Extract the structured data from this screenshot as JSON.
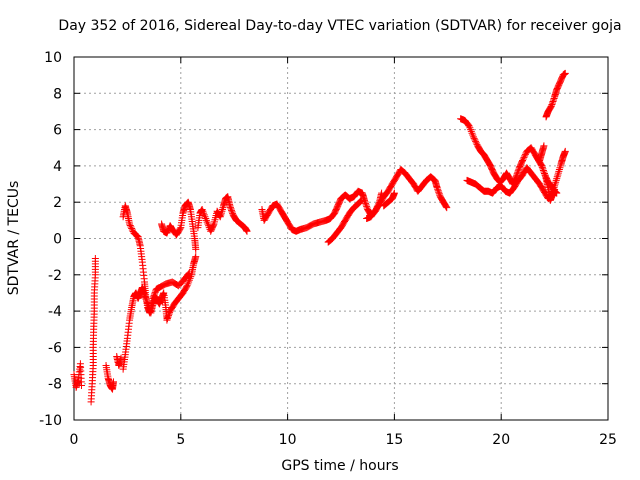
{
  "chart_data": {
    "type": "scatter",
    "title": "Day 352 of 2016, Sidereal Day-to-day VTEC variation (SDTVAR) for receiver goja",
    "xlabel": "GPS time / hours",
    "ylabel": "SDTVAR / TECUs",
    "xlim": [
      0,
      25
    ],
    "ylim": [
      -10,
      10
    ],
    "xticks": [
      "0",
      "5",
      "10",
      "15",
      "20",
      "25"
    ],
    "yticks": [
      "-10",
      "-8",
      "-6",
      "-4",
      "-2",
      "0",
      "2",
      "4",
      "6",
      "8",
      "10"
    ],
    "grid": true,
    "marker": "+",
    "color": "#ff0000",
    "series": [
      {
        "name": "SDTVAR",
        "segments": [
          [
            [
              0.0,
              -7.5
            ],
            [
              0.1,
              -8.2
            ],
            [
              0.2,
              -7.8
            ],
            [
              0.3,
              -6.9
            ],
            [
              0.35,
              -8.1
            ]
          ],
          [
            [
              0.8,
              -9.0
            ],
            [
              0.85,
              -8.0
            ],
            [
              0.9,
              -7.0
            ],
            [
              0.9,
              -6.0
            ],
            [
              0.92,
              -5.0
            ],
            [
              0.95,
              -4.0
            ],
            [
              0.95,
              -3.0
            ],
            [
              1.0,
              -2.0
            ],
            [
              1.0,
              -1.1
            ]
          ],
          [
            [
              1.5,
              -7.0
            ],
            [
              1.6,
              -7.7
            ],
            [
              1.7,
              -8.1
            ],
            [
              1.8,
              -8.3
            ],
            [
              1.85,
              -7.9
            ]
          ],
          [
            [
              2.0,
              -6.5
            ],
            [
              2.1,
              -7.0
            ],
            [
              2.2,
              -6.6
            ]
          ],
          [
            [
              2.3,
              -7.2
            ],
            [
              2.4,
              -6.4
            ],
            [
              2.5,
              -5.5
            ],
            [
              2.6,
              -4.5
            ],
            [
              2.7,
              -3.8
            ],
            [
              2.8,
              -3.2
            ],
            [
              2.9,
              -3.0
            ],
            [
              3.0,
              -3.3
            ],
            [
              3.1,
              -3.0
            ],
            [
              3.2,
              -2.7
            ],
            [
              3.3,
              -3.1
            ],
            [
              3.45,
              -3.6
            ],
            [
              3.6,
              -4.1
            ],
            [
              3.7,
              -3.6
            ],
            [
              3.8,
              -3.2
            ],
            [
              3.9,
              -3.4
            ],
            [
              4.0,
              -3.6
            ],
            [
              4.1,
              -3.3
            ],
            [
              4.2,
              -3.0
            ],
            [
              4.3,
              -3.8
            ],
            [
              4.35,
              -4.5
            ],
            [
              4.5,
              -4.0
            ],
            [
              4.7,
              -3.6
            ],
            [
              4.9,
              -3.3
            ],
            [
              5.1,
              -3.0
            ],
            [
              5.3,
              -2.6
            ],
            [
              5.5,
              -2.0
            ],
            [
              5.6,
              -1.4
            ],
            [
              5.7,
              -1.0
            ]
          ],
          [
            [
              2.3,
              1.2
            ],
            [
              2.4,
              1.8
            ],
            [
              2.5,
              1.4
            ],
            [
              2.6,
              0.8
            ],
            [
              2.8,
              0.3
            ],
            [
              3.0,
              0.1
            ],
            [
              3.1,
              -0.4
            ],
            [
              3.2,
              -1.3
            ],
            [
              3.3,
              -2.4
            ],
            [
              3.35,
              -3.1
            ],
            [
              3.45,
              -3.8
            ],
            [
              3.55,
              -4.1
            ],
            [
              3.7,
              -3.3
            ],
            [
              3.85,
              -2.8
            ],
            [
              4.0,
              -2.7
            ],
            [
              4.3,
              -2.5
            ],
            [
              4.6,
              -2.4
            ],
            [
              4.9,
              -2.6
            ],
            [
              5.2,
              -2.2
            ],
            [
              5.4,
              -1.9
            ]
          ],
          [
            [
              4.1,
              0.8
            ],
            [
              4.2,
              0.4
            ],
            [
              4.35,
              0.3
            ],
            [
              4.5,
              0.7
            ],
            [
              4.6,
              0.5
            ],
            [
              4.8,
              0.2
            ],
            [
              5.0,
              0.6
            ],
            [
              5.1,
              1.4
            ],
            [
              5.2,
              1.8
            ],
            [
              5.35,
              2.0
            ],
            [
              5.45,
              1.6
            ],
            [
              5.55,
              0.8
            ],
            [
              5.65,
              0.0
            ],
            [
              5.7,
              -0.6
            ]
          ],
          [
            [
              5.8,
              0.6
            ],
            [
              5.9,
              1.4
            ],
            [
              6.0,
              1.6
            ],
            [
              6.2,
              1.0
            ],
            [
              6.4,
              0.4
            ],
            [
              6.55,
              0.8
            ],
            [
              6.7,
              1.5
            ],
            [
              6.85,
              1.2
            ],
            [
              7.0,
              1.8
            ],
            [
              7.1,
              2.2
            ],
            [
              7.2,
              2.3
            ],
            [
              7.3,
              1.8
            ],
            [
              7.45,
              1.3
            ],
            [
              7.6,
              1.0
            ],
            [
              7.8,
              0.8
            ],
            [
              8.0,
              0.6
            ],
            [
              8.1,
              0.4
            ]
          ],
          [
            [
              8.8,
              1.6
            ],
            [
              8.9,
              1.0
            ],
            [
              9.1,
              1.4
            ],
            [
              9.3,
              1.8
            ],
            [
              9.5,
              1.9
            ],
            [
              9.7,
              1.5
            ],
            [
              9.85,
              1.2
            ],
            [
              10.0,
              0.9
            ],
            [
              10.2,
              0.5
            ],
            [
              10.4,
              0.4
            ],
            [
              10.6,
              0.5
            ],
            [
              10.9,
              0.6
            ],
            [
              11.2,
              0.8
            ],
            [
              11.5,
              0.9
            ],
            [
              11.8,
              1.0
            ],
            [
              12.0,
              1.1
            ],
            [
              12.2,
              1.4
            ],
            [
              12.35,
              1.8
            ],
            [
              12.5,
              2.2
            ],
            [
              12.7,
              2.4
            ],
            [
              12.9,
              2.2
            ],
            [
              13.1,
              2.3
            ],
            [
              13.3,
              2.6
            ],
            [
              13.5,
              2.5
            ],
            [
              13.6,
              2.1
            ],
            [
              13.75,
              1.6
            ],
            [
              13.9,
              1.3
            ],
            [
              14.1,
              1.5
            ],
            [
              14.3,
              1.9
            ],
            [
              14.5,
              2.3
            ],
            [
              14.7,
              2.6
            ],
            [
              14.9,
              3.0
            ],
            [
              15.1,
              3.4
            ],
            [
              15.3,
              3.8
            ],
            [
              15.5,
              3.6
            ],
            [
              15.7,
              3.3
            ],
            [
              15.9,
              3.0
            ],
            [
              16.1,
              2.6
            ],
            [
              16.3,
              2.9
            ],
            [
              16.5,
              3.2
            ],
            [
              16.7,
              3.4
            ],
            [
              16.9,
              3.2
            ],
            [
              17.0,
              2.8
            ],
            [
              17.15,
              2.3
            ],
            [
              17.3,
              2.0
            ],
            [
              17.45,
              1.7
            ]
          ],
          [
            [
              11.9,
              -0.2
            ],
            [
              12.1,
              0.0
            ],
            [
              12.3,
              0.3
            ],
            [
              12.5,
              0.6
            ],
            [
              12.7,
              1.0
            ],
            [
              12.9,
              1.4
            ],
            [
              13.1,
              1.7
            ],
            [
              13.3,
              1.9
            ],
            [
              13.45,
              2.1
            ]
          ],
          [
            [
              13.7,
              1.1
            ],
            [
              13.9,
              1.2
            ],
            [
              14.1,
              1.5
            ],
            [
              14.3,
              2.0
            ],
            [
              14.4,
              2.5
            ]
          ],
          [
            [
              14.5,
              1.8
            ],
            [
              14.7,
              2.0
            ],
            [
              14.9,
              2.2
            ],
            [
              15.0,
              2.5
            ]
          ],
          [
            [
              18.1,
              6.6
            ],
            [
              18.3,
              6.5
            ],
            [
              18.5,
              6.2
            ],
            [
              18.7,
              5.6
            ],
            [
              18.9,
              5.1
            ],
            [
              19.05,
              4.8
            ],
            [
              19.2,
              4.6
            ],
            [
              19.35,
              4.3
            ],
            [
              19.5,
              4.0
            ],
            [
              19.65,
              3.6
            ],
            [
              19.8,
              3.3
            ],
            [
              19.95,
              3.1
            ],
            [
              20.1,
              3.3
            ],
            [
              20.25,
              3.6
            ],
            [
              20.4,
              3.3
            ],
            [
              20.55,
              3.0
            ],
            [
              20.7,
              3.4
            ],
            [
              20.85,
              3.9
            ],
            [
              21.0,
              4.3
            ],
            [
              21.2,
              4.8
            ],
            [
              21.4,
              5.0
            ],
            [
              21.6,
              4.6
            ],
            [
              21.75,
              4.3
            ],
            [
              21.9,
              4.0
            ],
            [
              22.05,
              3.5
            ],
            [
              22.2,
              3.1
            ],
            [
              22.35,
              2.9
            ],
            [
              22.5,
              2.6
            ],
            [
              22.6,
              2.5
            ]
          ],
          [
            [
              18.4,
              3.2
            ],
            [
              18.6,
              3.1
            ],
            [
              18.8,
              3.0
            ],
            [
              19.0,
              2.8
            ],
            [
              19.2,
              2.6
            ],
            [
              19.4,
              2.6
            ],
            [
              19.6,
              2.5
            ],
            [
              19.8,
              2.8
            ],
            [
              20.0,
              2.9
            ],
            [
              20.2,
              2.6
            ],
            [
              20.4,
              2.5
            ],
            [
              20.6,
              2.8
            ],
            [
              20.8,
              3.2
            ],
            [
              21.0,
              3.5
            ],
            [
              21.2,
              3.9
            ],
            [
              21.4,
              3.6
            ],
            [
              21.6,
              3.3
            ],
            [
              21.8,
              3.0
            ],
            [
              22.0,
              2.6
            ],
            [
              22.2,
              2.2
            ],
            [
              22.35,
              2.3
            ],
            [
              22.5,
              2.9
            ],
            [
              22.65,
              3.5
            ],
            [
              22.8,
              4.1
            ],
            [
              22.9,
              4.5
            ],
            [
              23.0,
              4.8
            ]
          ],
          [
            [
              21.8,
              4.3
            ],
            [
              21.9,
              4.7
            ],
            [
              22.0,
              5.1
            ]
          ],
          [
            [
              22.1,
              3.3
            ],
            [
              22.2,
              2.8
            ],
            [
              22.3,
              2.1
            ],
            [
              22.4,
              2.4
            ],
            [
              22.5,
              2.7
            ]
          ],
          [
            [
              22.1,
              6.7
            ],
            [
              22.2,
              7.0
            ],
            [
              22.35,
              7.3
            ],
            [
              22.5,
              7.8
            ],
            [
              22.6,
              8.2
            ],
            [
              22.75,
              8.6
            ],
            [
              22.9,
              9.0
            ],
            [
              23.0,
              9.1
            ]
          ]
        ]
      }
    ]
  }
}
